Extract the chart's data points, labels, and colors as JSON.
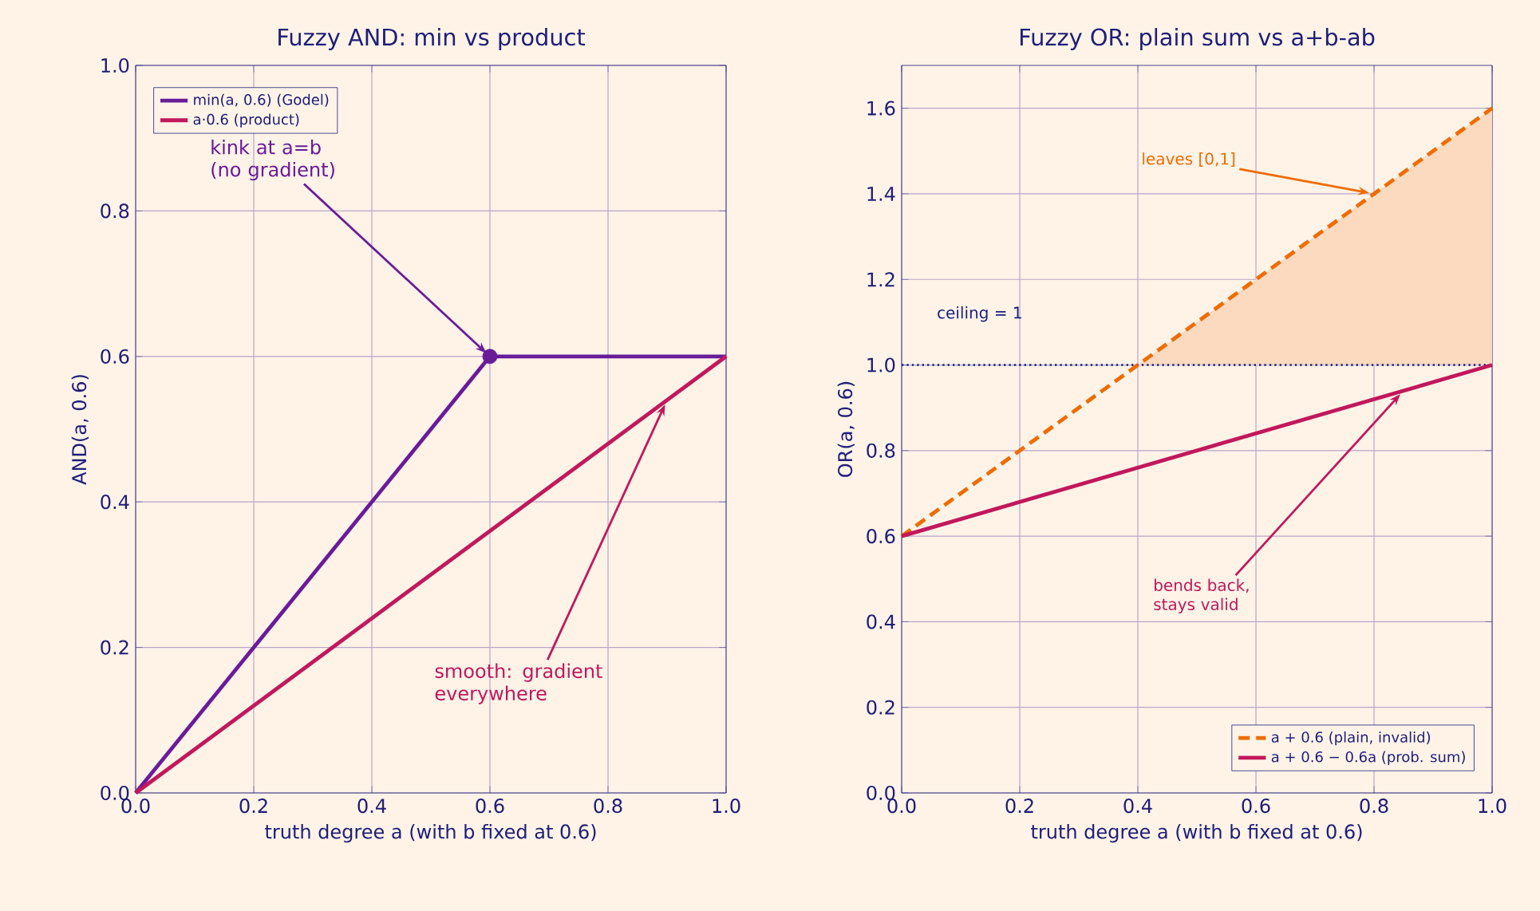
{
  "chart_data": [
    {
      "type": "line",
      "title": "Fuzzy AND: min vs product",
      "xlabel": "truth degree  a  (with b fixed at 0.6)",
      "ylabel": "AND(a, 0.6)",
      "xlim": [
        0,
        1
      ],
      "ylim": [
        0,
        1
      ],
      "xticks": [
        {
          "value": 0,
          "label": "0.0"
        },
        {
          "value": 0.2,
          "label": "0.2"
        },
        {
          "value": 0.4,
          "label": "0.4"
        },
        {
          "value": 0.6,
          "label": "0.6"
        },
        {
          "value": 0.8,
          "label": "0.8"
        },
        {
          "value": 1,
          "label": "1.0"
        }
      ],
      "yticks": [
        {
          "value": 0,
          "label": "0.0"
        },
        {
          "value": 0.2,
          "label": "0.2"
        },
        {
          "value": 0.4,
          "label": "0.4"
        },
        {
          "value": 0.6,
          "label": "0.6"
        },
        {
          "value": 0.8,
          "label": "0.8"
        },
        {
          "value": 1,
          "label": "1.0"
        }
      ],
      "grid": true,
      "legend": "top left",
      "marker": "none",
      "series": [
        {
          "name": "min(a, 0.6)  (Godel)",
          "color": "#6a1b9a",
          "x": [
            0,
            0.6,
            1
          ],
          "values": [
            0,
            0.6,
            0.6
          ]
        },
        {
          "name": "a·0.6  (product)",
          "color": "#c2185b",
          "x": [
            0,
            1
          ],
          "values": [
            0,
            0.6
          ]
        },
        {
          "type": "scatter",
          "marker": "circle",
          "color": "#6a1b9a",
          "x": [
            0.6
          ],
          "values": [
            0.6
          ]
        }
      ],
      "annotations": [
        {
          "text": "kink at a=b (no gradient)",
          "x": 0.6,
          "y": 0.6
        },
        {
          "text": "smooth: gradient everywhere",
          "x": 0.9,
          "y": 0.54
        }
      ]
    },
    {
      "type": "line",
      "title": "Fuzzy OR: plain sum vs a+b-ab",
      "xlabel": "truth degree  a  (with b fixed at 0.6)",
      "ylabel": "OR(a, 0.6)",
      "xlim": [
        0,
        1
      ],
      "ylim": [
        0,
        1.7
      ],
      "xticks": [
        {
          "value": 0,
          "label": "0.0"
        },
        {
          "value": 0.2,
          "label": "0.2"
        },
        {
          "value": 0.4,
          "label": "0.4"
        },
        {
          "value": 0.6,
          "label": "0.6"
        },
        {
          "value": 0.8,
          "label": "0.8"
        },
        {
          "value": 1,
          "label": "1.0"
        }
      ],
      "yticks": [
        {
          "value": 0,
          "label": "0.0"
        },
        {
          "value": 0.2,
          "label": "0.2"
        },
        {
          "value": 0.4,
          "label": "0.4"
        },
        {
          "value": 0.6,
          "label": "0.6"
        },
        {
          "value": 0.8,
          "label": "0.8"
        },
        {
          "value": 1,
          "label": "1.0"
        },
        {
          "value": 1.2,
          "label": "1.2"
        },
        {
          "value": 1.4,
          "label": "1.4"
        },
        {
          "value": 1.6,
          "label": "1.6"
        }
      ],
      "grid": true,
      "legend": "bottom right",
      "marker": "none",
      "series": [
        {
          "name": "a + 0.6  (plain, invalid)",
          "color": "#ef6c00",
          "line_style": "dashed",
          "x": [
            0,
            0.4,
            1
          ],
          "values": [
            0.6,
            1.0,
            1.6
          ],
          "lower": [
            null,
            1.0,
            1.0
          ],
          "upper": [
            null,
            1.0,
            1.6
          ]
        },
        {
          "name": "a + 0.6 − 0.6a  (prob. sum)",
          "color": "#c2185b",
          "x": [
            0,
            1
          ],
          "values": [
            0.6,
            1.0
          ]
        }
      ],
      "ref_lines": [
        {
          "axis": "y",
          "value": 1,
          "label": "ceiling = 1",
          "color": "#1a237e",
          "line_style": "dotted"
        }
      ],
      "annotations": [
        {
          "text": "leaves [0,1]",
          "x": 0.8,
          "y": 1.4
        },
        {
          "text": "bends back, stays valid",
          "x": 0.85,
          "y": 0.94
        }
      ]
    }
  ]
}
